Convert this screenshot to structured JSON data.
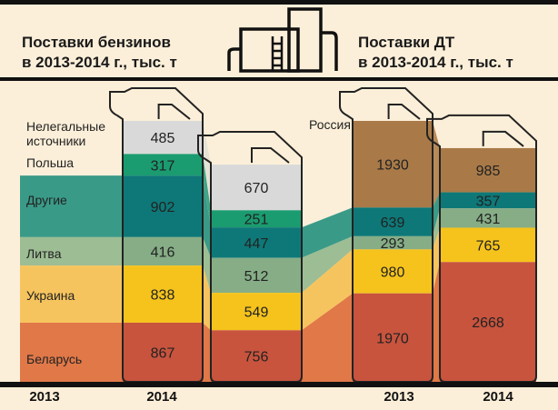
{
  "header": {
    "gasoline_title_1": "Поставки бензинов",
    "gasoline_title_2": "в 2013-2014 г., тыс. т",
    "diesel_title_1": "Поставки ДТ",
    "diesel_title_2": "в 2013-2014 г., тыс. т",
    "icon": "refinery-icon"
  },
  "colors": {
    "background": "#fcefd9",
    "illegal": "#d9d9d9",
    "poland": "#1a9c70",
    "other": "#0e7878",
    "lithuania": "#86ad86",
    "ukraine": "#f5c31c",
    "belarus": "#c8543e",
    "russia": "#a97a48"
  },
  "chart_data": [
    {
      "type": "stacked-bar",
      "title": "Поставки бензинов в 2013-2014 г., тыс. т",
      "categories": [
        "2013",
        "2014"
      ],
      "category_labels": [
        "Нелегальные источники",
        "Польша",
        "Другие",
        "Литва",
        "Украина",
        "Беларусь"
      ],
      "series": [
        {
          "key": "illegal",
          "name": "Нелегальные источники",
          "values": [
            485,
            670
          ]
        },
        {
          "key": "poland",
          "name": "Польша",
          "values": [
            317,
            251
          ]
        },
        {
          "key": "other",
          "name": "Другие",
          "values": [
            902,
            447
          ]
        },
        {
          "key": "lithuania",
          "name": "Литва",
          "values": [
            416,
            512
          ]
        },
        {
          "key": "ukraine",
          "name": "Украина",
          "values": [
            838,
            549
          ]
        },
        {
          "key": "belarus",
          "name": "Беларусь",
          "values": [
            867,
            756
          ]
        }
      ]
    },
    {
      "type": "stacked-bar",
      "title": "Поставки ДТ в 2013-2014 г., тыс. т",
      "categories": [
        "2013",
        "2014"
      ],
      "category_labels": [
        "Россия"
      ],
      "series": [
        {
          "key": "russia",
          "name": "Россия",
          "values": [
            1930,
            985
          ]
        },
        {
          "key": "other",
          "name": "Другие",
          "values": [
            639,
            357
          ]
        },
        {
          "key": "lithuania",
          "name": "Литва",
          "values": [
            293,
            431
          ]
        },
        {
          "key": "ukraine",
          "name": "Украина",
          "values": [
            980,
            765
          ]
        },
        {
          "key": "belarus",
          "name": "Беларусь",
          "values": [
            1970,
            2668
          ]
        }
      ]
    }
  ],
  "axis": {
    "year_labels": [
      "2013",
      "2014",
      "2013",
      "2014"
    ]
  }
}
